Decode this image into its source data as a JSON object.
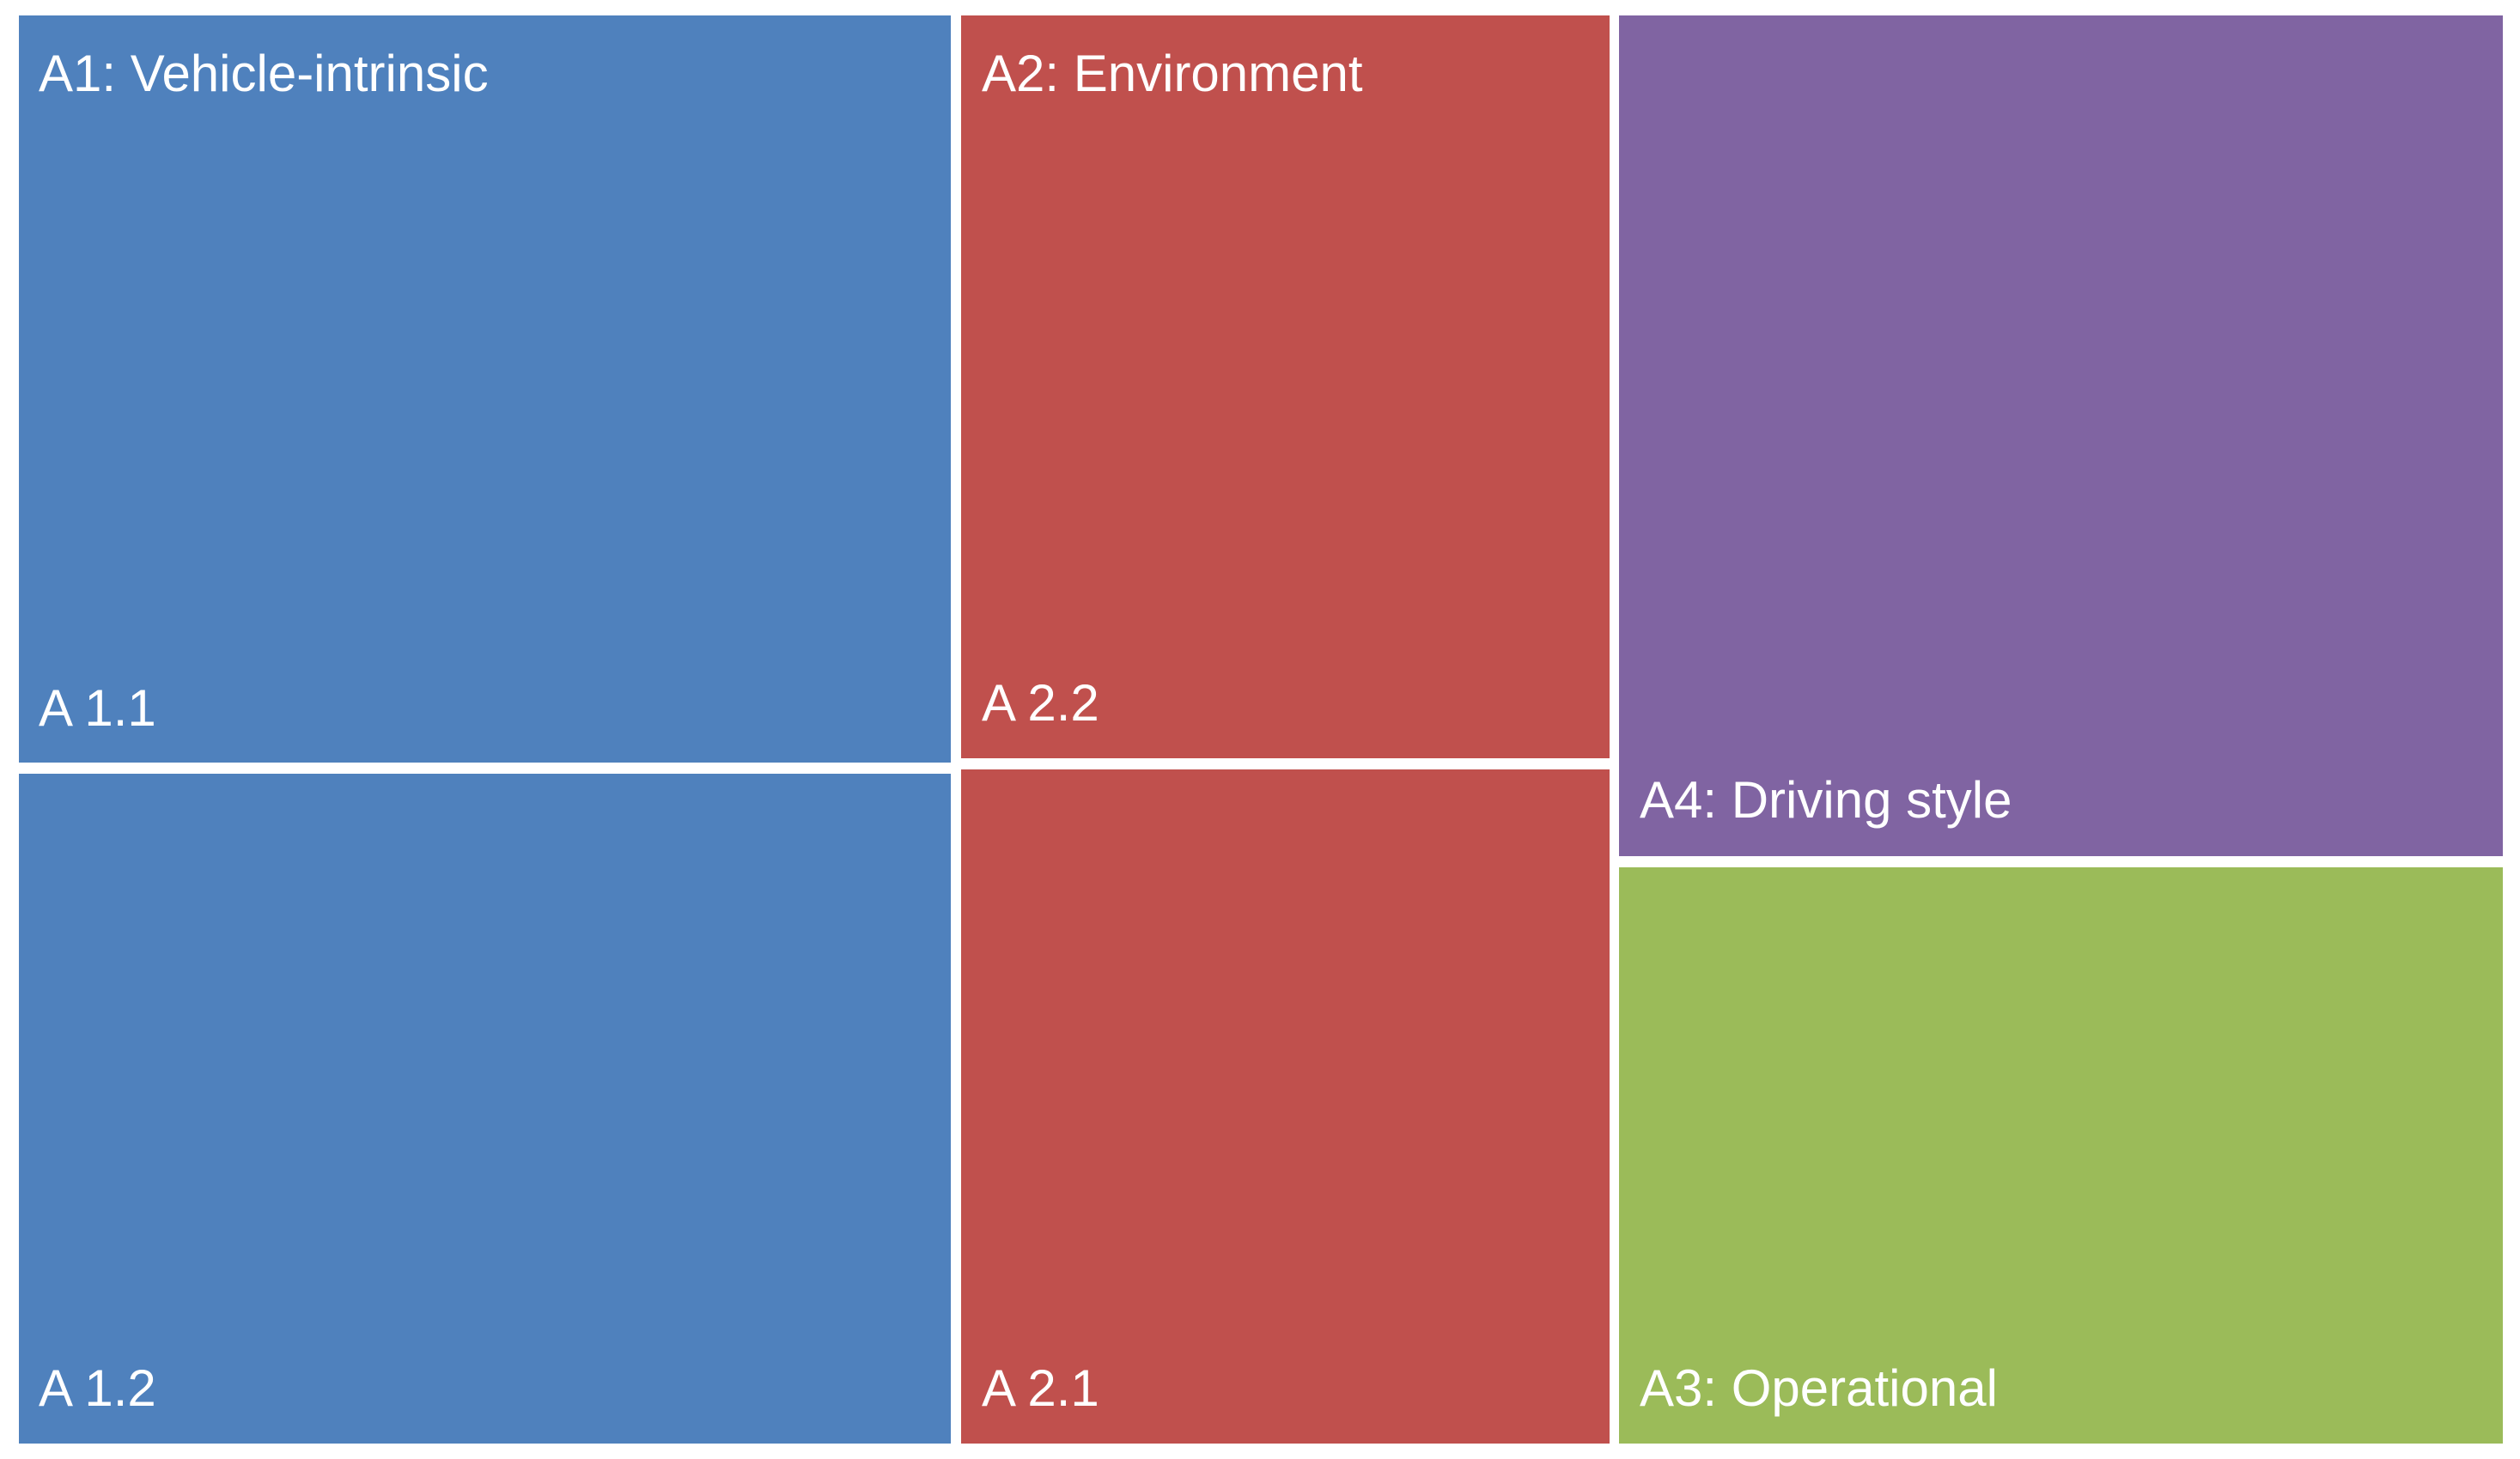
{
  "chart_data": {
    "type": "treemap",
    "groups": [
      {
        "id": "A1",
        "label": "A1: Vehicle-intrinsic",
        "color": "#4f81bd",
        "children": [
          {
            "label": "A 1.1",
            "value": 871
          },
          {
            "label": "A 1.2",
            "value": 781
          }
        ]
      },
      {
        "id": "A2",
        "label": "A2: Environment",
        "color": "#c0504d",
        "children": [
          {
            "label": "A 2.2",
            "value": 566
          },
          {
            "label": "A 2.1",
            "value": 520
          }
        ]
      },
      {
        "id": "A4",
        "label": "A4: Driving style",
        "color": "#8064a2",
        "children": []
      },
      {
        "id": "A3",
        "label": "A3: Operational",
        "color": "#9bbb59",
        "children": []
      }
    ]
  }
}
